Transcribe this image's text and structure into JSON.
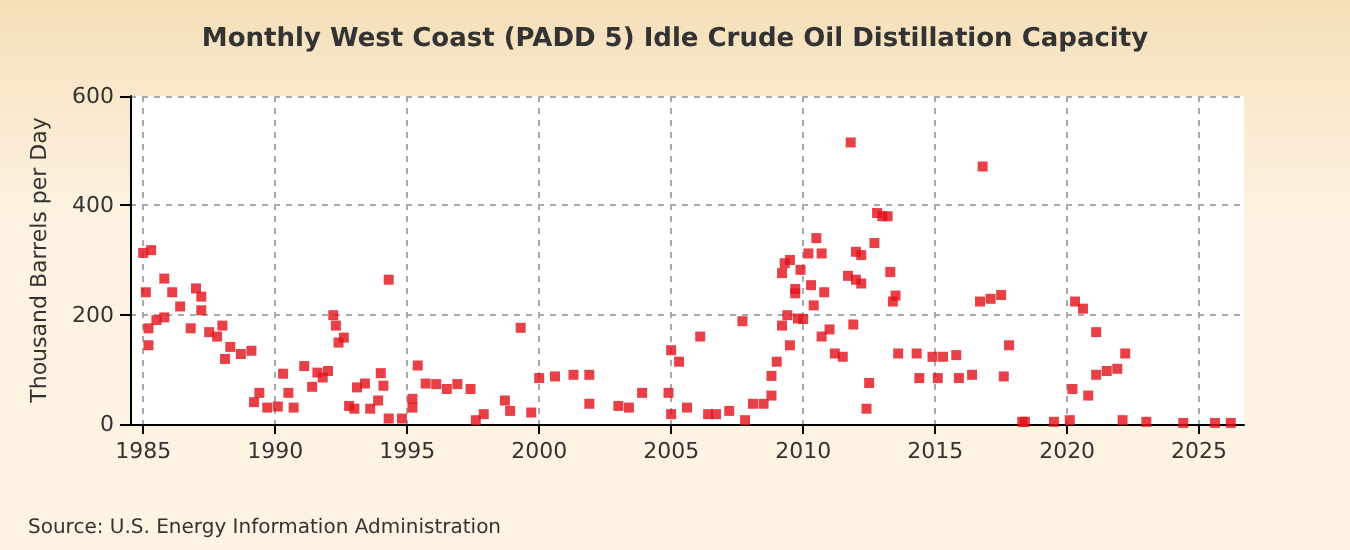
{
  "chart_data": {
    "type": "scatter",
    "title": "Monthly West Coast (PADD 5) Idle Crude Oil Distillation Capacity",
    "ylabel": "Thousand Barrels per Day",
    "annotations": [
      "Source: U.S. Energy Information Administration"
    ],
    "x": [
      1985.0,
      1985.1,
      1985.2,
      1985.2,
      1985.3,
      1985.5,
      1985.8,
      1985.8,
      1986.1,
      1986.4,
      1986.8,
      1987.0,
      1987.2,
      1987.2,
      1987.5,
      1987.8,
      1988.0,
      1988.1,
      1988.3,
      1988.7,
      1989.1,
      1989.2,
      1989.4,
      1989.7,
      1990.1,
      1990.3,
      1990.5,
      1990.7,
      1991.1,
      1991.4,
      1991.6,
      1991.8,
      1992.0,
      1992.2,
      1992.3,
      1992.4,
      1992.6,
      1992.8,
      1993.0,
      1993.1,
      1993.4,
      1993.6,
      1993.9,
      1994.0,
      1994.1,
      1994.3,
      1994.3,
      1994.8,
      1995.2,
      1995.2,
      1995.4,
      1995.7,
      1996.1,
      1996.5,
      1996.9,
      1997.4,
      1997.6,
      1997.9,
      1998.7,
      1998.9,
      1999.3,
      1999.7,
      2000.0,
      2000.6,
      2001.3,
      2001.9,
      2001.9,
      2003.0,
      2003.4,
      2003.9,
      2004.9,
      2005.0,
      2005.0,
      2005.3,
      2005.6,
      2006.1,
      2006.4,
      2006.7,
      2007.2,
      2007.7,
      2007.8,
      2008.1,
      2008.5,
      2008.8,
      2008.8,
      2009.0,
      2009.2,
      2009.2,
      2009.3,
      2009.4,
      2009.5,
      2009.5,
      2009.7,
      2009.7,
      2009.8,
      2009.9,
      2010.0,
      2010.2,
      2010.3,
      2010.4,
      2010.5,
      2010.7,
      2010.7,
      2010.8,
      2011.0,
      2011.2,
      2011.5,
      2011.7,
      2011.8,
      2011.9,
      2012.0,
      2012.0,
      2012.2,
      2012.2,
      2012.4,
      2012.5,
      2012.7,
      2012.8,
      2013.0,
      2013.2,
      2013.3,
      2013.4,
      2013.5,
      2013.6,
      2014.3,
      2014.4,
      2014.9,
      2015.1,
      2015.3,
      2015.8,
      2015.9,
      2016.4,
      2016.7,
      2016.8,
      2017.1,
      2017.5,
      2017.6,
      2017.8,
      2018.3,
      2018.4,
      2019.5,
      2020.1,
      2020.2,
      2020.3,
      2020.6,
      2020.8,
      2021.1,
      2021.1,
      2021.5,
      2021.9,
      2022.1,
      2022.2,
      2023.0,
      2024.4,
      2025.6,
      2026.2
    ],
    "values": [
      313,
      241,
      144,
      175,
      318,
      190,
      266,
      195,
      241,
      215,
      175,
      248,
      233,
      208,
      168,
      160,
      180,
      119,
      141,
      128,
      134,
      40,
      57,
      30,
      32,
      92,
      57,
      30,
      106,
      68,
      94,
      85,
      97,
      199,
      180,
      149,
      158,
      33,
      28,
      67,
      74,
      28,
      43,
      93,
      70,
      264,
      10,
      10,
      46,
      30,
      107,
      74,
      73,
      64,
      73,
      64,
      7,
      18,
      43,
      24,
      176,
      21,
      84,
      87,
      90,
      90,
      37,
      33,
      30,
      57,
      57,
      135,
      18,
      114,
      30,
      160,
      18,
      18,
      24,
      188,
      7,
      37,
      37,
      52,
      88,
      114,
      180,
      276,
      294,
      199,
      144,
      300,
      239,
      247,
      193,
      282,
      192,
      312,
      254,
      217,
      340,
      312,
      160,
      241,
      173,
      129,
      123,
      271,
      515,
      182,
      264,
      315,
      309,
      257,
      28,
      75,
      331,
      386,
      380,
      380,
      278,
      224,
      235,
      129,
      129,
      84,
      123,
      84,
      123,
      126,
      84,
      90,
      224,
      471,
      229,
      236,
      87,
      144,
      4,
      4,
      4,
      7,
      64,
      224,
      211,
      52,
      168,
      90,
      97,
      101,
      7,
      129,
      4,
      2,
      2,
      2
    ],
    "color": "#e4101a",
    "marker": "square",
    "xlim": [
      1984.5,
      2026.7
    ],
    "xticks": [
      1985,
      1990,
      1995,
      2000,
      2005,
      2010,
      2015,
      2020,
      2025
    ],
    "ylim": [
      0,
      600
    ],
    "yticks": [
      0,
      200,
      400,
      600
    ],
    "grid": true
  }
}
